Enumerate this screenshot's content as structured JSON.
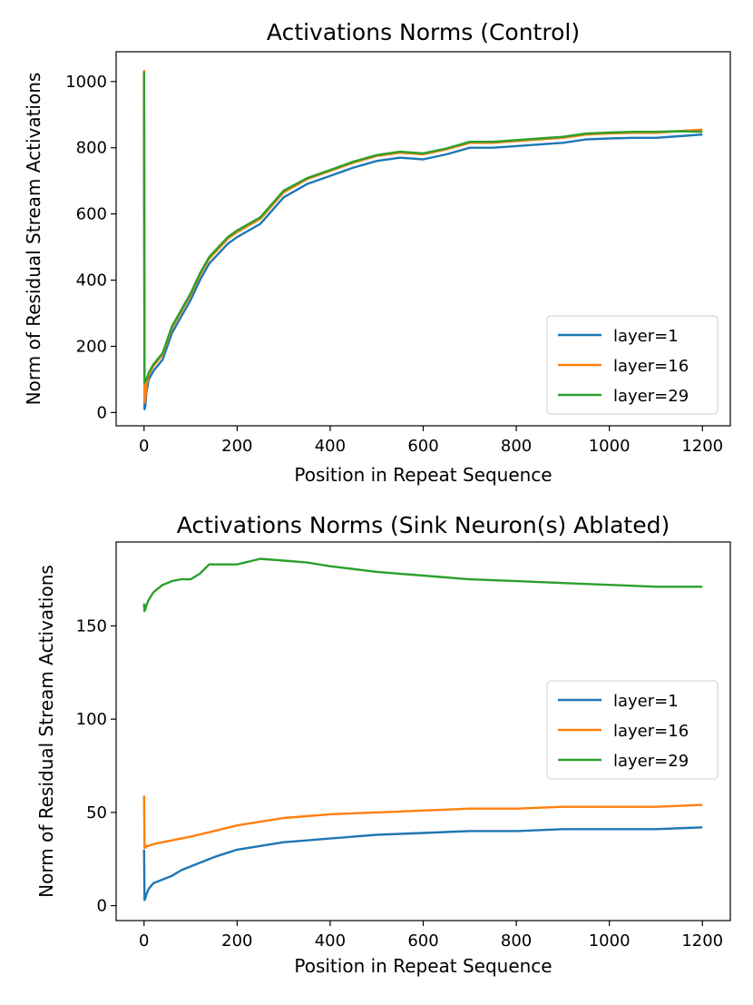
{
  "chart_data": [
    {
      "type": "line",
      "title": "Activations Norms (Control)",
      "xlabel": "Position in Repeat Sequence",
      "ylabel": "Norm of Residual Stream Activations",
      "xlim": [
        -60,
        1260
      ],
      "ylim": [
        -40,
        1090
      ],
      "xticks": [
        0,
        200,
        400,
        600,
        800,
        1000,
        1200
      ],
      "yticks": [
        0,
        200,
        400,
        600,
        800,
        1000
      ],
      "legend_position": "lower-right",
      "series": [
        {
          "name": "layer=1",
          "color": "#1f77b4",
          "x": [
            0,
            1,
            3,
            5,
            10,
            20,
            40,
            60,
            80,
            100,
            120,
            140,
            160,
            180,
            200,
            250,
            300,
            350,
            400,
            450,
            500,
            550,
            600,
            650,
            700,
            750,
            800,
            850,
            900,
            950,
            1000,
            1050,
            1100,
            1150,
            1200
          ],
          "y": [
            1000,
            10,
            20,
            60,
            100,
            125,
            160,
            240,
            290,
            340,
            400,
            450,
            480,
            510,
            530,
            570,
            650,
            690,
            715,
            740,
            760,
            770,
            765,
            780,
            800,
            800,
            805,
            810,
            815,
            825,
            828,
            830,
            830,
            835,
            840
          ]
        },
        {
          "name": "layer=16",
          "color": "#ff7f0e",
          "x": [
            0,
            1,
            3,
            5,
            10,
            20,
            40,
            60,
            80,
            100,
            120,
            140,
            160,
            180,
            200,
            250,
            300,
            350,
            400,
            450,
            500,
            550,
            600,
            650,
            700,
            750,
            800,
            850,
            900,
            950,
            1000,
            1050,
            1100,
            1150,
            1200
          ],
          "y": [
            1035,
            30,
            45,
            80,
            115,
            140,
            175,
            255,
            305,
            355,
            415,
            465,
            495,
            525,
            545,
            585,
            665,
            705,
            730,
            755,
            775,
            785,
            780,
            795,
            815,
            815,
            820,
            825,
            830,
            840,
            843,
            845,
            845,
            850,
            855
          ]
        },
        {
          "name": "layer=29",
          "color": "#2ca02c",
          "x": [
            0,
            1,
            3,
            5,
            10,
            20,
            40,
            60,
            80,
            100,
            120,
            140,
            160,
            180,
            200,
            250,
            300,
            350,
            400,
            450,
            500,
            550,
            600,
            650,
            700,
            750,
            800,
            850,
            900,
            950,
            1000,
            1050,
            1100,
            1150,
            1200
          ],
          "y": [
            1030,
            90,
            95,
            100,
            120,
            145,
            180,
            260,
            310,
            360,
            420,
            470,
            500,
            530,
            550,
            590,
            670,
            708,
            733,
            758,
            778,
            788,
            783,
            798,
            818,
            818,
            823,
            828,
            833,
            843,
            846,
            848,
            848,
            850,
            848
          ]
        }
      ]
    },
    {
      "type": "line",
      "title": "Activations Norms (Sink Neuron(s) Ablated)",
      "xlabel": "Position in Repeat Sequence",
      "ylabel": "Norm of Residual Stream Activations",
      "xlim": [
        -60,
        1260
      ],
      "ylim": [
        -8,
        195
      ],
      "xticks": [
        0,
        200,
        400,
        600,
        800,
        1000,
        1200
      ],
      "yticks": [
        0,
        50,
        100,
        150
      ],
      "legend_position": "center-right",
      "series": [
        {
          "name": "layer=1",
          "color": "#1f77b4",
          "x": [
            0,
            1,
            3,
            5,
            10,
            20,
            40,
            60,
            80,
            100,
            150,
            200,
            250,
            300,
            350,
            400,
            500,
            600,
            700,
            800,
            900,
            1000,
            1100,
            1200
          ],
          "y": [
            30,
            3,
            4,
            6,
            9,
            12,
            14,
            16,
            19,
            21,
            26,
            30,
            32,
            34,
            35,
            36,
            38,
            39,
            40,
            40,
            41,
            41,
            41,
            42
          ]
        },
        {
          "name": "layer=16",
          "color": "#ff7f0e",
          "x": [
            0,
            1,
            3,
            5,
            10,
            20,
            40,
            60,
            80,
            100,
            150,
            200,
            250,
            300,
            350,
            400,
            500,
            600,
            700,
            800,
            900,
            1000,
            1100,
            1200
          ],
          "y": [
            59,
            31,
            31,
            32,
            32,
            33,
            34,
            35,
            36,
            37,
            40,
            43,
            45,
            47,
            48,
            49,
            50,
            51,
            52,
            52,
            53,
            53,
            53,
            54
          ]
        },
        {
          "name": "layer=29",
          "color": "#2ca02c",
          "x": [
            0,
            1,
            3,
            5,
            10,
            20,
            40,
            60,
            80,
            100,
            120,
            140,
            160,
            200,
            250,
            300,
            350,
            400,
            500,
            600,
            700,
            800,
            900,
            1000,
            1100,
            1200
          ],
          "y": [
            162,
            158,
            159,
            161,
            164,
            168,
            172,
            174,
            175,
            175,
            178,
            183,
            183,
            183,
            186,
            185,
            184,
            182,
            179,
            177,
            175,
            174,
            173,
            172,
            171,
            171
          ]
        }
      ]
    }
  ]
}
